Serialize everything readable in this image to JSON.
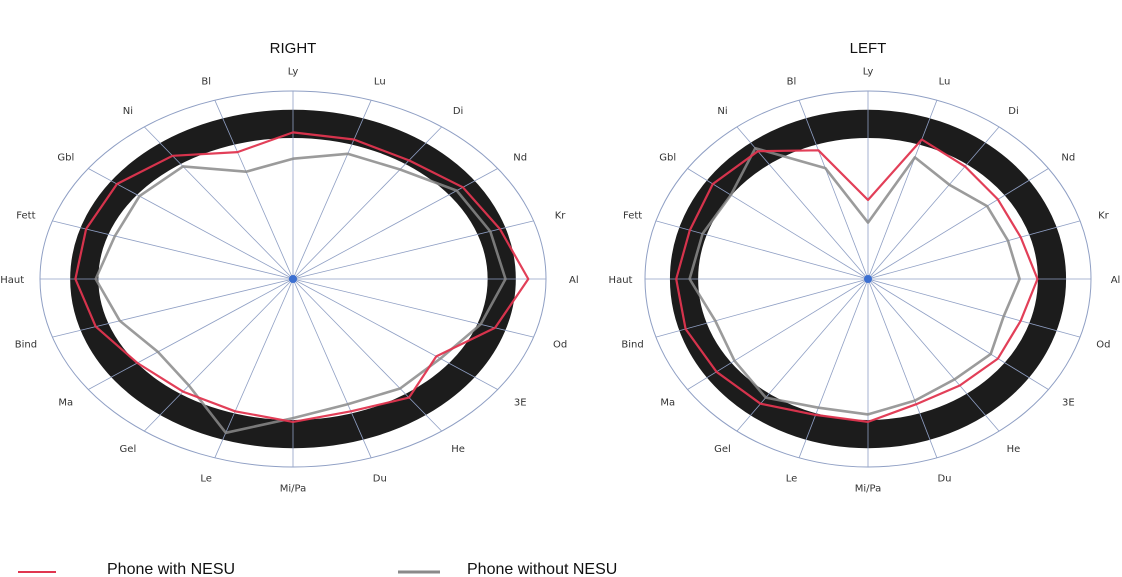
{
  "chart_data": [
    {
      "type": "radar",
      "title": "RIGHT",
      "axes": [
        "Ly",
        "Lu",
        "Di",
        "Nd",
        "Kr",
        "Al",
        "Od",
        "3E",
        "He",
        "Du",
        "Mi/Pa",
        "Le",
        "Gel",
        "Ma",
        "Bind",
        "Haut",
        "Fett",
        "Gbl",
        "Ni",
        "Bl"
      ],
      "range": [
        0,
        1
      ],
      "normal_band": [
        0.75,
        0.9
      ],
      "series": [
        {
          "name": "Phone with NESU",
          "color": "#e0354f",
          "values": [
            0.78,
            0.78,
            0.78,
            0.83,
            0.86,
            0.93,
            0.84,
            0.7,
            0.78,
            0.74,
            0.76,
            0.74,
            0.74,
            0.76,
            0.82,
            0.86,
            0.86,
            0.86,
            0.81,
            0.71
          ]
        },
        {
          "name": "Phone without NESU",
          "color": "#8a8a8a",
          "values": [
            0.64,
            0.7,
            0.72,
            0.8,
            0.82,
            0.84,
            0.78,
            0.72,
            0.72,
            0.7,
            0.74,
            0.86,
            0.7,
            0.66,
            0.72,
            0.78,
            0.74,
            0.75,
            0.74,
            0.6
          ]
        }
      ]
    },
    {
      "type": "radar",
      "title": "LEFT",
      "axes": [
        "Ly",
        "Lu",
        "Di",
        "Nd",
        "Kr",
        "Al",
        "Od",
        "3E",
        "He",
        "Du",
        "Mi/Pa",
        "Le",
        "Gel",
        "Ma",
        "Bind",
        "Haut",
        "Fett",
        "Gbl",
        "Ni",
        "Bl"
      ],
      "range": [
        0,
        1
      ],
      "normal_band": [
        0.75,
        0.9
      ],
      "series": [
        {
          "name": "Phone with NESU",
          "color": "#e0354f",
          "values": [
            0.42,
            0.78,
            0.74,
            0.72,
            0.72,
            0.76,
            0.72,
            0.72,
            0.7,
            0.7,
            0.76,
            0.76,
            0.82,
            0.84,
            0.86,
            0.86,
            0.84,
            0.86,
            0.84,
            0.72
          ]
        },
        {
          "name": "Phone without NESU",
          "color": "#8a8a8a",
          "values": [
            0.3,
            0.68,
            0.62,
            0.66,
            0.66,
            0.68,
            0.64,
            0.68,
            0.66,
            0.68,
            0.72,
            0.72,
            0.78,
            0.74,
            0.72,
            0.8,
            0.78,
            0.76,
            0.86,
            0.62
          ]
        }
      ]
    }
  ],
  "legend": [
    {
      "label": "Phone with NESU",
      "color": "#e0354f"
    },
    {
      "label": "Phone without NESU",
      "color": "#8a8a8a"
    }
  ]
}
